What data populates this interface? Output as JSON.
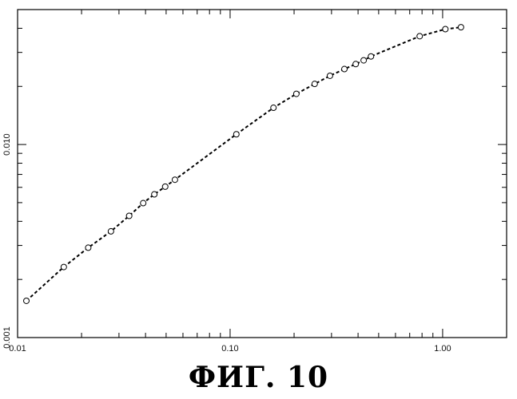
{
  "chart_data": {
    "type": "scatter",
    "title": "",
    "xlabel": "",
    "ylabel": "",
    "x_scale": "log",
    "y_scale": "log",
    "xlim": [
      0.01,
      2.0
    ],
    "ylim": [
      0.001,
      0.05
    ],
    "x_tick_labels": [
      {
        "value": 0.01,
        "label": "0.01"
      },
      {
        "value": 0.1,
        "label": "0.10"
      },
      {
        "value": 1.0,
        "label": "1.00"
      }
    ],
    "y_tick_labels": [
      {
        "value": 0.001,
        "label": "0.001"
      },
      {
        "value": 0.01,
        "label": "0.010"
      }
    ],
    "grid": false,
    "legend": "none",
    "series": [
      {
        "marker": "open-circle",
        "line": "dashed",
        "x": [
          0.011,
          0.0165,
          0.0215,
          0.0275,
          0.0335,
          0.039,
          0.044,
          0.0495,
          0.055,
          0.107,
          0.16,
          0.205,
          0.25,
          0.295,
          0.345,
          0.39,
          0.425,
          0.46,
          0.78,
          1.03,
          1.22
        ],
        "y": [
          0.00155,
          0.00232,
          0.00292,
          0.00355,
          0.00427,
          0.00497,
          0.00552,
          0.00605,
          0.00657,
          0.0113,
          0.0155,
          0.0183,
          0.0206,
          0.0227,
          0.0246,
          0.0261,
          0.0273,
          0.0286,
          0.0364,
          0.0396,
          0.0405
        ]
      }
    ]
  },
  "figure_caption": "ФИГ. 10",
  "colors": {
    "axis": "#000000",
    "marker": "#000000",
    "line": "#000000",
    "background": "#ffffff"
  }
}
